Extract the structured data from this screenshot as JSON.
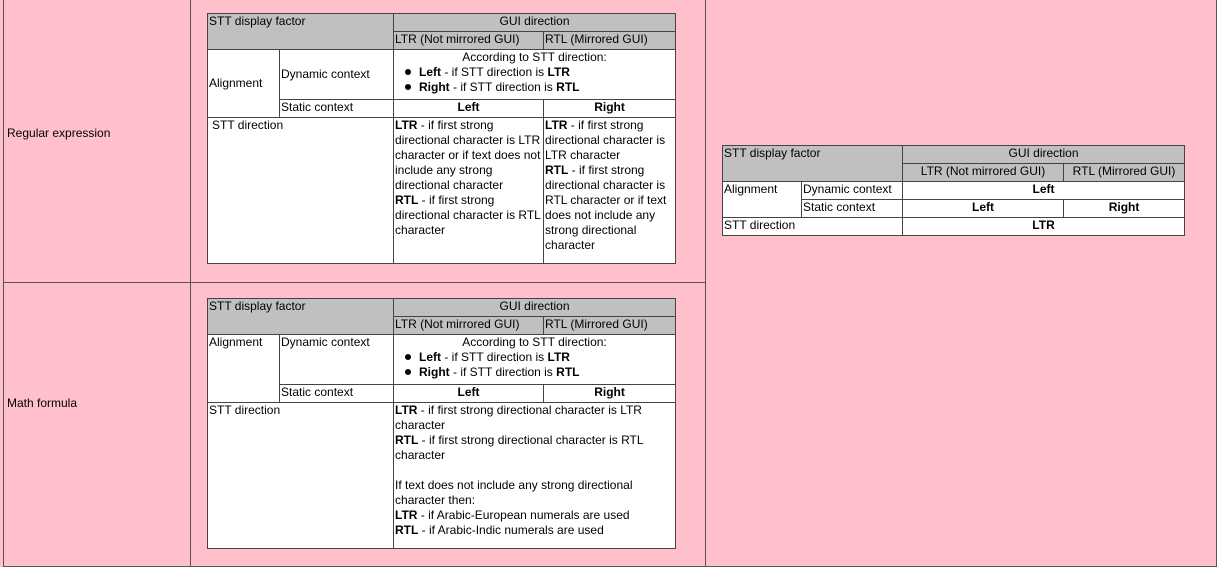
{
  "colors": {
    "background": "#ffc0cb",
    "header": "#c0c0c0"
  },
  "sections": [
    {
      "label": "Regular expression",
      "table": {
        "factor": "STT display factor",
        "gui": "GUI direction",
        "ltr": "LTR (Not mirrored GUI)",
        "rtl": "RTL (Mirrored GUI)",
        "alignment": "Alignment",
        "dynamic": "Dynamic context",
        "dynamic_intro": "According to STT direction:",
        "dynamic_bullets": [
          [
            {
              "text": "Left",
              "bold": true
            },
            {
              "text": " - if STT direction is "
            },
            {
              "text": "LTR",
              "bold": true
            }
          ],
          [
            {
              "text": "Right",
              "bold": true
            },
            {
              "text": " - if STT direction is "
            },
            {
              "text": "RTL",
              "bold": true
            }
          ]
        ],
        "static": "Static context",
        "static_ltr": "Left",
        "static_rtl": "Right",
        "stt": "STT direction",
        "stt_ltr": [
          [
            {
              "text": "LTR",
              "bold": true
            },
            {
              "text": " - if first strong directional character is LTR character or if text does not include any strong directional character"
            }
          ],
          [
            {
              "text": "RTL",
              "bold": true
            },
            {
              "text": " - if first strong directional character is RTL character"
            }
          ]
        ],
        "stt_rtl": [
          [
            {
              "text": "LTR",
              "bold": true
            },
            {
              "text": " - if first strong directional character is LTR character"
            }
          ],
          [
            {
              "text": "RTL",
              "bold": true
            },
            {
              "text": " - if first strong directional character is RTL character or if text does not include any strong directional character"
            }
          ]
        ]
      }
    },
    {
      "label": "Math formula",
      "table": {
        "factor": "STT display factor",
        "gui": "GUI direction",
        "ltr": "LTR (Not mirrored GUI)",
        "rtl": "RTL (Mirrored GUI)",
        "alignment": "Alignment",
        "dynamic": "Dynamic context",
        "dynamic_intro": "According to STT direction:",
        "dynamic_bullets": [
          [
            {
              "text": "Left",
              "bold": true
            },
            {
              "text": " - if STT direction is "
            },
            {
              "text": "LTR",
              "bold": true
            }
          ],
          [
            {
              "text": "Right",
              "bold": true
            },
            {
              "text": " - if STT direction is "
            },
            {
              "text": "RTL",
              "bold": true
            }
          ]
        ],
        "static": "Static context",
        "static_ltr": "Left",
        "static_rtl": "Right",
        "stt": "STT direction",
        "stt_both": [
          [
            {
              "text": "LTR",
              "bold": true
            },
            {
              "text": " - if first strong directional character is LTR character"
            }
          ],
          [
            {
              "text": "RTL",
              "bold": true
            },
            {
              "text": " - if first strong directional character is RTL character"
            }
          ],
          [],
          [
            {
              "text": "If text does not include any strong directional character then:"
            }
          ],
          [
            {
              "text": "LTR",
              "bold": true
            },
            {
              "text": " - if Arabic-European numerals are used"
            }
          ],
          [
            {
              "text": "RTL",
              "bold": true
            },
            {
              "text": " - if Arabic-Indic numerals are used"
            }
          ]
        ]
      }
    }
  ],
  "right_table": {
    "factor": "STT display factor",
    "gui": "GUI direction",
    "ltr": "LTR (Not mirrored GUI)",
    "rtl": "RTL (Mirrored GUI)",
    "alignment": "Alignment",
    "dynamic": "Dynamic context",
    "dynamic_value": "Left",
    "static": "Static context",
    "static_ltr": "Left",
    "static_rtl": "Right",
    "stt": "STT direction",
    "stt_value": "LTR"
  }
}
